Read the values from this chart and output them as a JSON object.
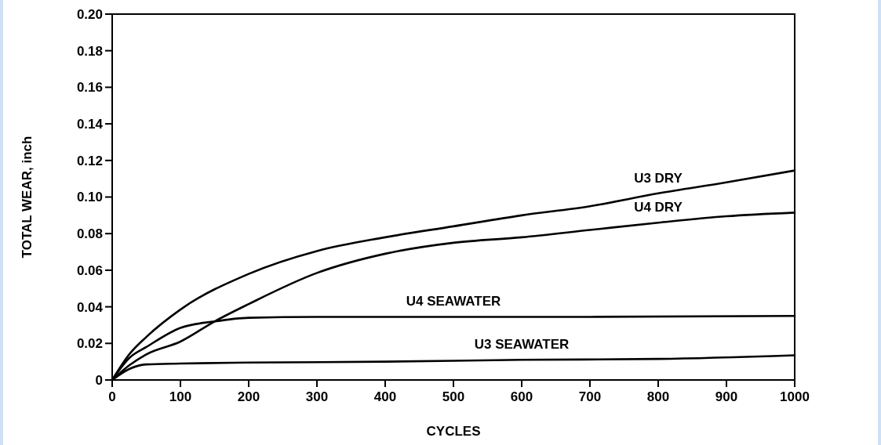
{
  "chart_data": {
    "type": "line",
    "xlabel": "CYCLES",
    "ylabel": "TOTAL WEAR, inch",
    "xlim": [
      0,
      1000
    ],
    "ylim": [
      0,
      0.2
    ],
    "xticks": [
      0,
      100,
      200,
      300,
      400,
      500,
      600,
      700,
      800,
      900,
      1000
    ],
    "yticks": [
      0,
      {
        "value": 0.02,
        "label": "0.02"
      },
      {
        "value": 0.04,
        "label": "0.04"
      },
      {
        "value": 0.06,
        "label": "0.06"
      },
      {
        "value": 0.08,
        "label": "0.08"
      },
      {
        "value": 0.1,
        "label": "0.10"
      },
      {
        "value": 0.12,
        "label": "0.12"
      },
      {
        "value": 0.14,
        "label": "0.14"
      },
      {
        "value": 0.16,
        "label": "0.16"
      },
      {
        "value": 0.18,
        "label": "0.18"
      },
      {
        "value": 0.2,
        "label": "0.20"
      }
    ],
    "grid": false,
    "marker": "none",
    "line_style": "solid",
    "series": [
      {
        "name": "U3 DRY",
        "color": "#000000",
        "x": [
          0,
          25,
          50,
          100,
          200,
          300,
          400,
          500,
          600,
          700,
          800,
          900,
          1000
        ],
        "values": [
          0,
          0.014,
          0.0235,
          0.0385,
          0.058,
          0.0705,
          0.078,
          0.084,
          0.09,
          0.095,
          0.102,
          0.108,
          0.1145
        ]
      },
      {
        "name": "U4 DRY",
        "color": "#000000",
        "x": [
          0,
          25,
          50,
          100,
          150,
          200,
          300,
          400,
          500,
          600,
          700,
          800,
          900,
          1000
        ],
        "values": [
          0,
          0.008,
          0.014,
          0.021,
          0.032,
          0.0415,
          0.0585,
          0.069,
          0.075,
          0.078,
          0.082,
          0.086,
          0.0895,
          0.0915
        ]
      },
      {
        "name": "U4 SEAWATER",
        "color": "#000000",
        "x": [
          0,
          25,
          50,
          100,
          150,
          200,
          300,
          500,
          700,
          1000
        ],
        "values": [
          0,
          0.012,
          0.018,
          0.0285,
          0.032,
          0.034,
          0.0345,
          0.0345,
          0.0345,
          0.035
        ]
      },
      {
        "name": "U3 SEAWATER",
        "color": "#000000",
        "x": [
          0,
          25,
          50,
          100,
          200,
          400,
          600,
          800,
          1000
        ],
        "values": [
          0,
          0.006,
          0.0085,
          0.009,
          0.0095,
          0.01,
          0.011,
          0.0115,
          0.0135
        ]
      }
    ]
  }
}
